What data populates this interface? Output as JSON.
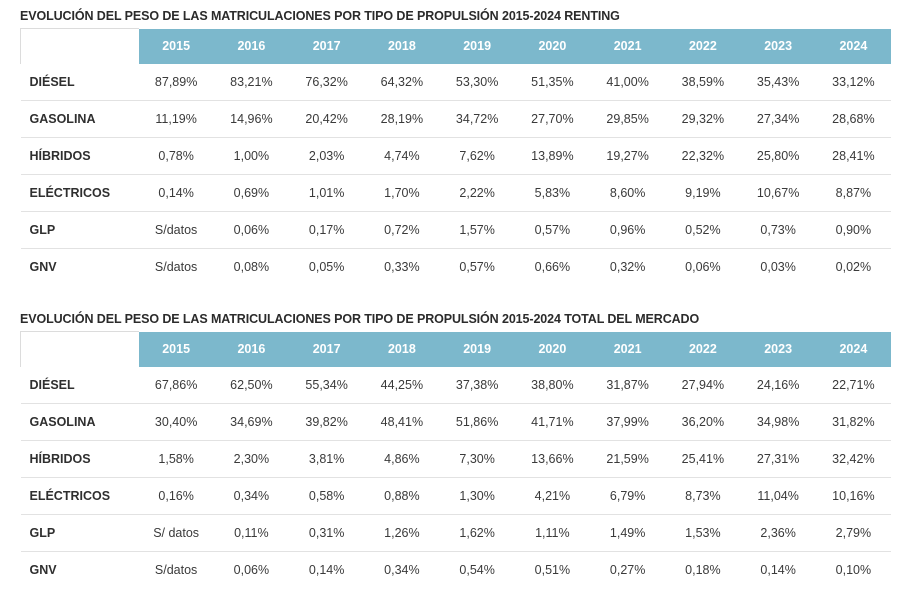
{
  "tables": [
    {
      "title": "EVOLUCIÓN DEL PESO DE LAS MATRICULACIONES POR TIPO DE PROPULSIÓN 2015-2024 RENTING",
      "years": [
        "2015",
        "2016",
        "2017",
        "2018",
        "2019",
        "2020",
        "2021",
        "2022",
        "2023",
        "2024"
      ],
      "rows": [
        {
          "label": "DIÉSEL",
          "values": [
            "87,89%",
            "83,21%",
            "76,32%",
            "64,32%",
            "53,30%",
            "51,35%",
            "41,00%",
            "38,59%",
            "35,43%",
            "33,12%"
          ]
        },
        {
          "label": "GASOLINA",
          "values": [
            "11,19%",
            "14,96%",
            "20,42%",
            "28,19%",
            "34,72%",
            "27,70%",
            "29,85%",
            "29,32%",
            "27,34%",
            "28,68%"
          ]
        },
        {
          "label": "HÍBRIDOS",
          "values": [
            "0,78%",
            "1,00%",
            "2,03%",
            "4,74%",
            "7,62%",
            "13,89%",
            "19,27%",
            "22,32%",
            "25,80%",
            "28,41%"
          ]
        },
        {
          "label": "ELÉCTRICOS",
          "values": [
            "0,14%",
            "0,69%",
            "1,01%",
            "1,70%",
            "2,22%",
            "5,83%",
            "8,60%",
            "9,19%",
            "10,67%",
            "8,87%"
          ]
        },
        {
          "label": "GLP",
          "values": [
            "S/datos",
            "0,06%",
            "0,17%",
            "0,72%",
            "1,57%",
            "0,57%",
            "0,96%",
            "0,52%",
            "0,73%",
            "0,90%"
          ]
        },
        {
          "label": "GNV",
          "values": [
            "S/datos",
            "0,08%",
            "0,05%",
            "0,33%",
            "0,57%",
            "0,66%",
            "0,32%",
            "0,06%",
            "0,03%",
            "0,02%"
          ]
        }
      ]
    },
    {
      "title": "EVOLUCIÓN DEL PESO DE LAS MATRICULACIONES POR TIPO DE PROPULSIÓN 2015-2024 TOTAL DEL MERCADO",
      "years": [
        "2015",
        "2016",
        "2017",
        "2018",
        "2019",
        "2020",
        "2021",
        "2022",
        "2023",
        "2024"
      ],
      "rows": [
        {
          "label": "DIÉSEL",
          "values": [
            "67,86%",
            "62,50%",
            "55,34%",
            "44,25%",
            "37,38%",
            "38,80%",
            "31,87%",
            "27,94%",
            "24,16%",
            "22,71%"
          ]
        },
        {
          "label": "GASOLINA",
          "values": [
            "30,40%",
            "34,69%",
            "39,82%",
            "48,41%",
            "51,86%",
            "41,71%",
            "37,99%",
            "36,20%",
            "34,98%",
            "31,82%"
          ]
        },
        {
          "label": "HÍBRIDOS",
          "values": [
            "1,58%",
            "2,30%",
            "3,81%",
            "4,86%",
            "7,30%",
            "13,66%",
            "21,59%",
            "25,41%",
            "27,31%",
            "32,42%"
          ]
        },
        {
          "label": "ELÉCTRICOS",
          "values": [
            "0,16%",
            "0,34%",
            "0,58%",
            "0,88%",
            "1,30%",
            "4,21%",
            "6,79%",
            "8,73%",
            "11,04%",
            "10,16%"
          ]
        },
        {
          "label": "GLP",
          "values": [
            "S/ datos",
            "0,11%",
            "0,31%",
            "1,26%",
            "1,62%",
            "1,11%",
            "1,49%",
            "1,53%",
            "2,36%",
            "2,79%"
          ]
        },
        {
          "label": "GNV",
          "values": [
            "S/datos",
            "0,06%",
            "0,14%",
            "0,34%",
            "0,54%",
            "0,51%",
            "0,27%",
            "0,18%",
            "0,14%",
            "0,10%"
          ]
        }
      ]
    }
  ],
  "colors": {
    "header_bg": "#7cb8cc",
    "header_text": "#ffffff",
    "row_divider": "#e2e2e2"
  }
}
